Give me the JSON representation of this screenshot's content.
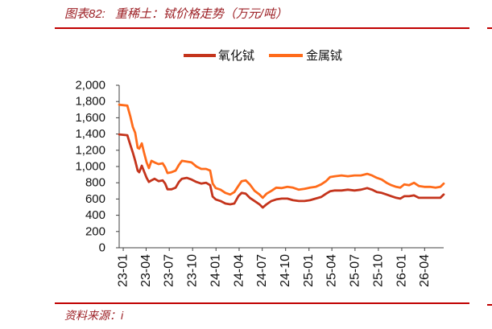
{
  "header": {
    "figure_label": "图表82:"
  },
  "footer": {
    "source": "资料来源：i"
  },
  "colors": {
    "accent": "#C00000",
    "title_text": "#9C1F24",
    "axis": "#404040"
  },
  "chart_data": {
    "type": "line",
    "title": "重稀土：铽价格走势（万元/吨）",
    "grid": false,
    "legend": {
      "position": "top"
    },
    "x_axis": {
      "type": "date",
      "range": [
        "2022-12-16",
        "2026-06-15"
      ],
      "tick_labels": [
        "23-01",
        "23-04",
        "23-07",
        "23-10",
        "24-01",
        "24-04",
        "24-07",
        "24-10",
        "25-01",
        "25-04",
        "25-07",
        "25-10",
        "26-01",
        "26-04"
      ]
    },
    "y_axis": {
      "range": [
        0,
        2000
      ],
      "tick_labels": [
        "0",
        "200",
        "400",
        "600",
        "800",
        "1,000",
        "1,200",
        "1,400",
        "1,600",
        "1,800",
        "2,000"
      ]
    },
    "x": [
      "2022-12-16",
      "2023-01-17",
      "2023-01-29",
      "2023-02-08",
      "2023-02-17",
      "2023-02-27",
      "2023-03-05",
      "2023-03-15",
      "2023-03-24",
      "2023-04-03",
      "2023-04-12",
      "2023-04-22",
      "2023-05-04",
      "2023-05-20",
      "2023-06-05",
      "2023-06-15",
      "2023-06-24",
      "2023-07-10",
      "2023-07-26",
      "2023-08-08",
      "2023-08-20",
      "2023-09-08",
      "2023-09-27",
      "2023-10-16",
      "2023-11-04",
      "2023-11-23",
      "2023-12-09",
      "2023-12-19",
      "2023-12-31",
      "2024-01-19",
      "2024-02-07",
      "2024-02-26",
      "2024-03-13",
      "2024-03-29",
      "2024-04-11",
      "2024-04-27",
      "2024-05-13",
      "2024-06-01",
      "2024-06-20",
      "2024-07-03",
      "2024-07-18",
      "2024-08-06",
      "2024-08-25",
      "2024-09-16",
      "2024-10-08",
      "2024-10-30",
      "2024-11-22",
      "2024-12-14",
      "2025-01-05",
      "2025-01-27",
      "2025-02-18",
      "2025-03-09",
      "2025-03-25",
      "2025-04-13",
      "2025-05-09",
      "2025-06-03",
      "2025-06-29",
      "2025-07-24",
      "2025-08-18",
      "2025-09-06",
      "2025-09-25",
      "2025-10-14",
      "2025-11-02",
      "2025-11-21",
      "2025-12-10",
      "2025-12-26",
      "2026-01-11",
      "2026-01-30",
      "2026-02-18",
      "2026-03-09",
      "2026-03-31",
      "2026-04-22",
      "2026-05-14",
      "2026-06-02",
      "2026-06-15"
    ],
    "series": [
      {
        "name": "氧化铽",
        "color": "#C4341C",
        "values": [
          1395,
          1385,
          1265,
          1170,
          1070,
          950,
          930,
          1010,
          940,
          860,
          810,
          830,
          850,
          820,
          830,
          790,
          720,
          720,
          740,
          810,
          850,
          860,
          840,
          810,
          790,
          800,
          770,
          630,
          595,
          575,
          545,
          535,
          545,
          635,
          675,
          665,
          615,
          575,
          535,
          495,
          535,
          575,
          595,
          605,
          605,
          585,
          575,
          575,
          585,
          605,
          625,
          665,
          695,
          705,
          705,
          715,
          705,
          715,
          735,
          715,
          685,
          675,
          655,
          635,
          615,
          605,
          635,
          635,
          645,
          615,
          615,
          615,
          615,
          615,
          655
        ]
      },
      {
        "name": "金属铽",
        "color": "#FF6B1A",
        "values": [
          1760,
          1750,
          1615,
          1485,
          1415,
          1230,
          1220,
          1285,
          1170,
          1050,
          980,
          1070,
          1050,
          1030,
          1040,
          990,
          920,
          930,
          950,
          1020,
          1070,
          1060,
          1050,
          1000,
          970,
          970,
          950,
          790,
          735,
          715,
          675,
          655,
          685,
          760,
          820,
          830,
          780,
          700,
          655,
          615,
          665,
          700,
          740,
          735,
          750,
          740,
          715,
          725,
          740,
          750,
          780,
          820,
          870,
          880,
          890,
          880,
          890,
          890,
          910,
          890,
          860,
          840,
          800,
          770,
          750,
          740,
          780,
          770,
          800,
          760,
          750,
          750,
          740,
          750,
          790
        ]
      }
    ]
  }
}
